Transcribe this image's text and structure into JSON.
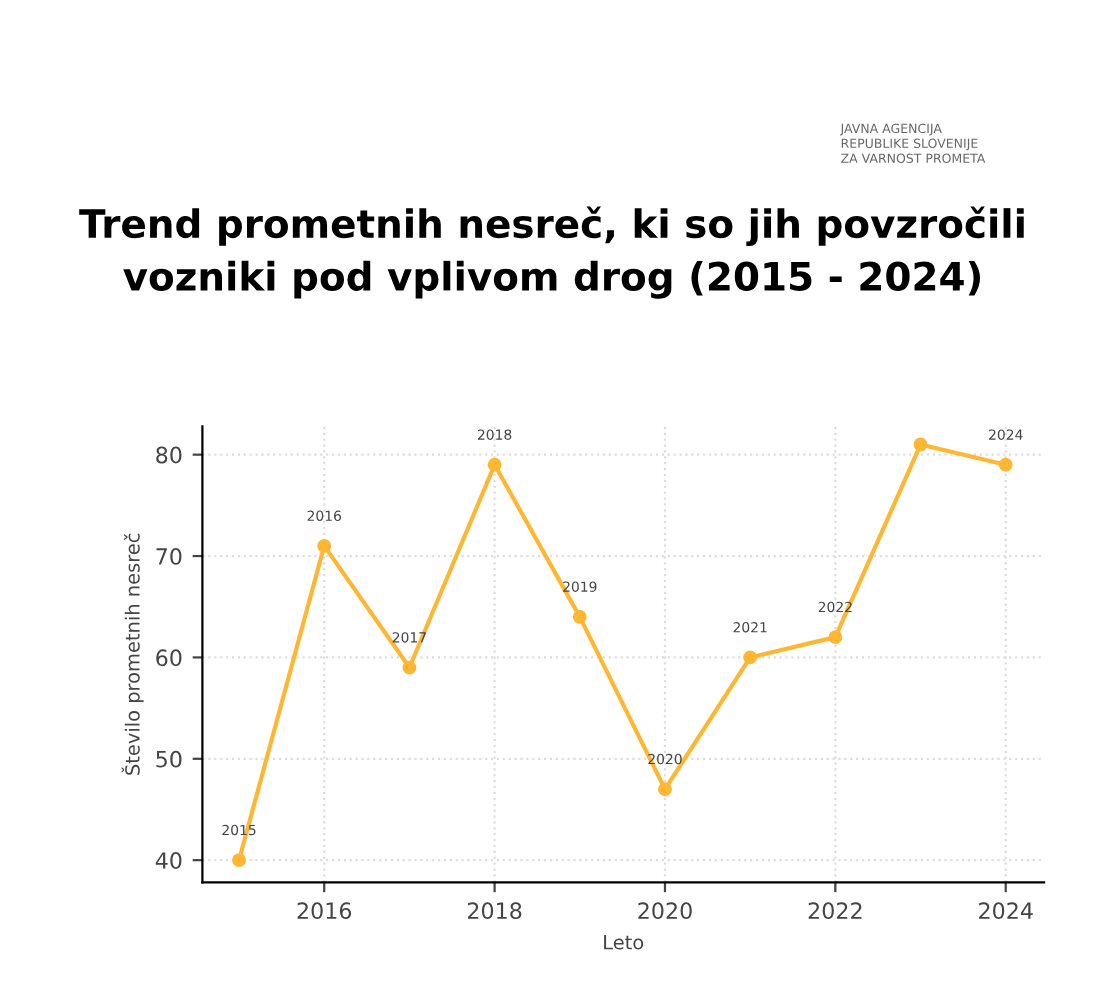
{
  "chart_data": {
    "type": "line",
    "title": "Trend prometnih nesreč, ki so jih povzročili\nvozniki pod vplivom drog (2015 - 2024)",
    "xlabel": "Leto",
    "ylabel": "Število prometnih nesreč",
    "x": [
      2015,
      2016,
      2017,
      2018,
      2019,
      2020,
      2021,
      2022,
      2023,
      2024
    ],
    "series": [
      {
        "color": "#ffb733",
        "values": [
          40,
          71,
          59,
          79,
          64,
          47,
          60,
          62,
          81,
          79
        ]
      }
    ],
    "marker": "circle",
    "line_style": "solid",
    "xlim": [
      2014.57,
      2024.45
    ],
    "ylim": [
      37.8,
      82.8
    ],
    "xticks": [
      2016,
      2018,
      2020,
      2022,
      2024
    ],
    "yticks": [
      40,
      50,
      60,
      70,
      80
    ],
    "grid": true,
    "annotations": [
      {
        "text": "2015",
        "x": 2015,
        "y": 40
      },
      {
        "text": "2016",
        "x": 2016,
        "y": 71
      },
      {
        "text": "2017",
        "x": 2017,
        "y": 59
      },
      {
        "text": "2018",
        "x": 2018,
        "y": 79
      },
      {
        "text": "2019",
        "x": 2019,
        "y": 64
      },
      {
        "text": "2020",
        "x": 2020,
        "y": 47
      },
      {
        "text": "2021",
        "x": 2021,
        "y": 60
      },
      {
        "text": "2022",
        "x": 2022,
        "y": 62
      },
      {
        "text": "2024",
        "x": 2024,
        "y": 79
      },
      "JAVNA AGENCIJA\nREPUBLIKE SLOVENIJE\nZA VARNOST PROMETA"
    ]
  }
}
